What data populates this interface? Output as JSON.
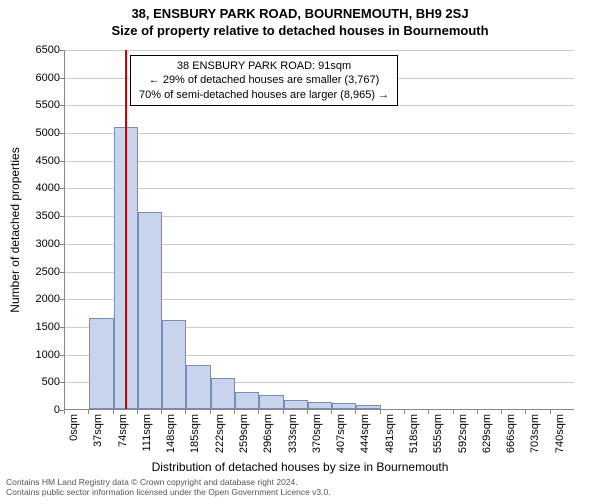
{
  "title": {
    "line1": "38, ENSBURY PARK ROAD, BOURNEMOUTH, BH9 2SJ",
    "line2": "Size of property relative to detached houses in Bournemouth"
  },
  "chart": {
    "type": "histogram",
    "ylabel": "Number of detached properties",
    "xlabel": "Distribution of detached houses by size in Bournemouth",
    "ylim": [
      0,
      6500
    ],
    "ytick_step": 500,
    "x_start": 0,
    "x_step": 37,
    "x_ticks_count": 21,
    "x_unit": "sqm",
    "bar_color": "#c8d4ec",
    "bar_border": "#7a8db8",
    "grid_color": "#cccccc",
    "background_color": "#ffffff",
    "marker_x": 91,
    "marker_color": "#d00000",
    "values": [
      0,
      1650,
      5100,
      3550,
      1600,
      800,
      560,
      300,
      250,
      170,
      120,
      100,
      70,
      0,
      0,
      0,
      0,
      0,
      0,
      0
    ]
  },
  "annotation": {
    "line1": "38 ENSBURY PARK ROAD: 91sqm",
    "line2": "← 29% of detached houses are smaller (3,767)",
    "line3": "70% of semi-detached houses are larger (8,965) →"
  },
  "footer": {
    "line1": "Contains HM Land Registry data © Crown copyright and database right 2024.",
    "line2": "Contains public sector information licensed under the Open Government Licence v3.0."
  }
}
